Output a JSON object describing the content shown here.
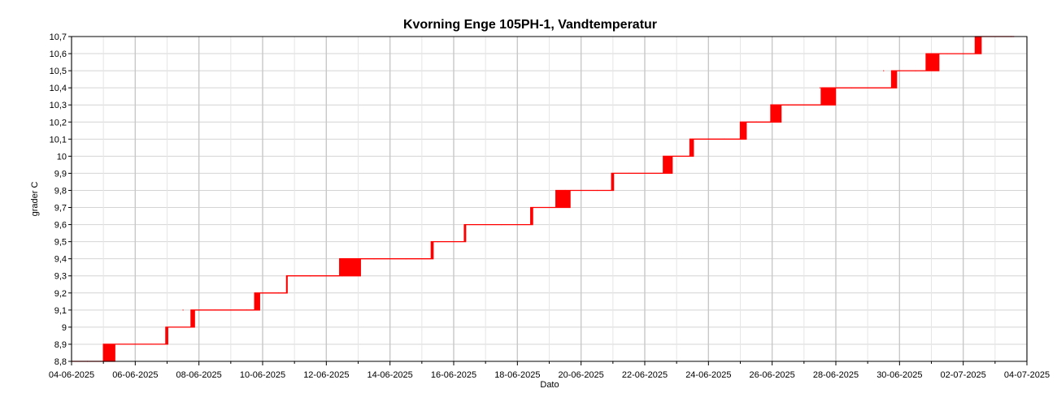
{
  "chart_data": {
    "type": "line",
    "title": "Kvorning Enge 105PH-1, Vandtemperatur",
    "xlabel": "Dato",
    "ylabel": "grader C",
    "grid": true,
    "legend": "none",
    "xlim": [
      "04-06-2025",
      "04-07-2025"
    ],
    "ylim": [
      8.8,
      10.7
    ],
    "x_ticks": [
      "04-06-2025",
      "06-06-2025",
      "08-06-2025",
      "10-06-2025",
      "12-06-2025",
      "14-06-2025",
      "16-06-2025",
      "18-06-2025",
      "20-06-2025",
      "22-06-2025",
      "24-06-2025",
      "26-06-2025",
      "28-06-2025",
      "30-06-2025",
      "02-07-2025",
      "04-07-2025"
    ],
    "y_ticks": [
      "8,8",
      "8,9",
      "9",
      "9,1",
      "9,2",
      "9,3",
      "9,4",
      "9,5",
      "9,6",
      "9,7",
      "9,8",
      "9,9",
      "10",
      "10,1",
      "10,2",
      "10,3",
      "10,4",
      "10,5",
      "10,6",
      "10,7"
    ],
    "series": [
      {
        "color": "#ff0000",
        "x": [
          "04-06-2025",
          "05-06-2025",
          "06-06-2025",
          "07-06-2025",
          "08-06-2025",
          "09-06-2025",
          "10-06-2025",
          "11-06-2025",
          "12-06-2025",
          "13-06-2025",
          "14-06-2025",
          "15-06-2025",
          "16-06-2025",
          "17-06-2025",
          "18-06-2025",
          "19-06-2025",
          "20-06-2025",
          "21-06-2025",
          "22-06-2025",
          "23-06-2025",
          "24-06-2025",
          "25-06-2025",
          "26-06-2025",
          "27-06-2025",
          "28-06-2025",
          "29-06-2025",
          "30-06-2025",
          "01-07-2025",
          "02-07-2025",
          "03-07-2025"
        ],
        "values": [
          8.8,
          8.9,
          8.9,
          9.1,
          9.1,
          9.1,
          9.2,
          9.3,
          9.3,
          9.4,
          9.4,
          9.5,
          9.6,
          9.6,
          9.7,
          9.8,
          9.8,
          9.9,
          9.9,
          10.1,
          10.1,
          10.2,
          10.3,
          10.4,
          10.4,
          10.5,
          10.5,
          10.6,
          10.6,
          10.7
        ]
      }
    ],
    "steps": [
      {
        "from": 8.8,
        "to": 8.9,
        "start": "05-06-2025 00:00",
        "end": "05-06-2025 10:00"
      },
      {
        "from": 8.9,
        "to": 9.0,
        "start": "06-06-2025 23:00",
        "end": "07-06-2025 02:00"
      },
      {
        "from": 9.0,
        "to": 9.1,
        "start": "07-06-2025 18:00",
        "end": "07-06-2025 22:00"
      },
      {
        "from": 9.1,
        "to": 9.2,
        "start": "09-06-2025 18:00",
        "end": "09-06-2025 23:00"
      },
      {
        "from": 9.2,
        "to": 9.3,
        "start": "10-06-2025 18:00",
        "end": "10-06-2025 19:00"
      },
      {
        "from": 9.3,
        "to": 9.4,
        "start": "12-06-2025 10:00",
        "end": "13-06-2025 03:00"
      },
      {
        "from": 9.4,
        "to": 9.5,
        "start": "15-06-2025 07:00",
        "end": "15-06-2025 10:00"
      },
      {
        "from": 9.5,
        "to": 9.6,
        "start": "16-06-2025 08:00",
        "end": "16-06-2025 10:00"
      },
      {
        "from": 9.6,
        "to": 9.7,
        "start": "18-06-2025 10:00",
        "end": "18-06-2025 13:00"
      },
      {
        "from": 9.7,
        "to": 9.8,
        "start": "19-06-2025 05:00",
        "end": "19-06-2025 17:00"
      },
      {
        "from": 9.8,
        "to": 9.9,
        "start": "20-06-2025 23:00",
        "end": "21-06-2025 02:00"
      },
      {
        "from": 9.9,
        "to": 10.0,
        "start": "22-06-2025 14:00",
        "end": "22-06-2025 22:00"
      },
      {
        "from": 10.0,
        "to": 10.1,
        "start": "23-06-2025 10:00",
        "end": "23-06-2025 14:00"
      },
      {
        "from": 10.1,
        "to": 10.2,
        "start": "25-06-2025 00:00",
        "end": "25-06-2025 06:00"
      },
      {
        "from": 10.2,
        "to": 10.3,
        "start": "25-06-2025 23:00",
        "end": "26-06-2025 08:00"
      },
      {
        "from": 10.3,
        "to": 10.4,
        "start": "27-06-2025 13:00",
        "end": "28-06-2025 01:00"
      },
      {
        "from": 10.4,
        "to": 10.5,
        "start": "29-06-2025 18:00",
        "end": "29-06-2025 23:00"
      },
      {
        "from": 10.5,
        "to": 10.6,
        "start": "30-06-2025 20:00",
        "end": "01-07-2025 07:00"
      },
      {
        "from": 10.6,
        "to": 10.7,
        "start": "02-07-2025 09:00",
        "end": "02-07-2025 15:00"
      }
    ]
  }
}
